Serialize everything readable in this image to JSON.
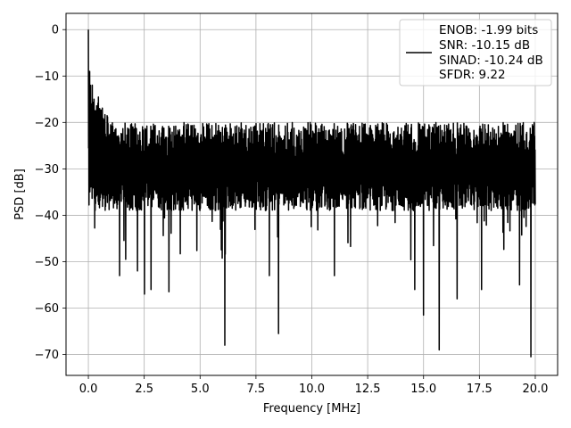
{
  "chart_data": {
    "type": "line",
    "xlabel": "Frequency [MHz]",
    "ylabel": "PSD [dB]",
    "xlim": [
      -1.0,
      21.0
    ],
    "ylim": [
      -74.5,
      3.5
    ],
    "xticks": [
      0.0,
      2.5,
      5.0,
      7.5,
      10.0,
      12.5,
      15.0,
      17.5,
      20.0
    ],
    "xtick_labels": [
      "0.0",
      "2.5",
      "5.0",
      "7.5",
      "10.0",
      "12.5",
      "15.0",
      "17.5",
      "20.0"
    ],
    "yticks": [
      0,
      -10,
      -20,
      -30,
      -40,
      -50,
      -60,
      -70
    ],
    "ytick_labels": [
      "0",
      "−10",
      "−20",
      "−30",
      "−40",
      "−50",
      "−60",
      "−70"
    ],
    "grid": true,
    "legend_position": "top-right",
    "legend_entries": [
      "ENOB: -1.99 bits",
      "SNR: -10.15 dB",
      "SINAD: -10.24 dB",
      "SFDR: 9.22"
    ],
    "series_color": "#000000",
    "series": [
      {
        "x_range": [
          0,
          20
        ],
        "num_points": 2048,
        "baseline_db": -31,
        "noise_floor_db": -39,
        "peaks": [
          {
            "x": 0.0,
            "y": 0
          },
          {
            "x": 0.05,
            "y": -9
          },
          {
            "x": 0.1,
            "y": -12
          },
          {
            "x": 0.25,
            "y": -15
          },
          {
            "x": 0.5,
            "y": -17
          }
        ],
        "dips": [
          {
            "x": 0.0,
            "y": -25.5
          },
          {
            "x": 1.4,
            "y": -53
          },
          {
            "x": 2.2,
            "y": -52
          },
          {
            "x": 2.5,
            "y": -57
          },
          {
            "x": 2.8,
            "y": -56
          },
          {
            "x": 3.6,
            "y": -56.5
          },
          {
            "x": 6.1,
            "y": -68
          },
          {
            "x": 8.1,
            "y": -53
          },
          {
            "x": 8.5,
            "y": -65.5
          },
          {
            "x": 11.0,
            "y": -53
          },
          {
            "x": 14.6,
            "y": -56
          },
          {
            "x": 15.0,
            "y": -61.5
          },
          {
            "x": 15.7,
            "y": -69
          },
          {
            "x": 16.5,
            "y": -58
          },
          {
            "x": 17.6,
            "y": -56
          },
          {
            "x": 19.3,
            "y": -55
          },
          {
            "x": 19.8,
            "y": -70.5
          }
        ]
      }
    ]
  }
}
